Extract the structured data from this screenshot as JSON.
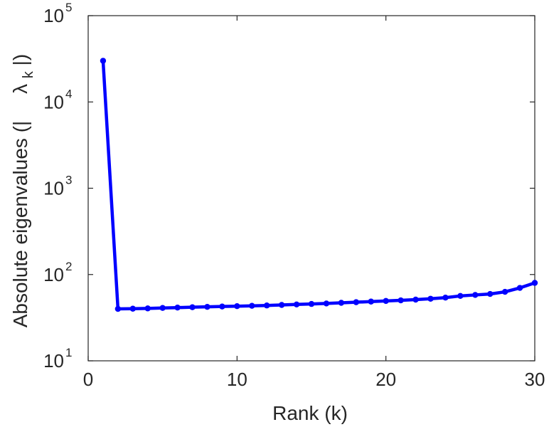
{
  "chart_data": {
    "type": "line",
    "xlabel": "Rank (k)",
    "ylabel_prefix": "Absolute eigenvalues (|",
    "ylabel_symbol": "λ",
    "ylabel_sub": "k",
    "ylabel_suffix": "|)",
    "x_scale": "linear",
    "y_scale": "log",
    "xlim": [
      0,
      30
    ],
    "ylim": [
      10,
      100000
    ],
    "x_ticks": [
      0,
      10,
      20,
      30
    ],
    "x_tick_labels": [
      "0",
      "10",
      "20",
      "30"
    ],
    "y_ticks": [
      10,
      100,
      1000,
      10000,
      100000
    ],
    "y_tick_base": "10",
    "y_tick_exponents": [
      "1",
      "2",
      "3",
      "4",
      "5"
    ],
    "grid": false,
    "color": "#0000ff",
    "x": [
      1,
      2,
      3,
      4,
      5,
      6,
      7,
      8,
      9,
      10,
      11,
      12,
      13,
      14,
      15,
      16,
      17,
      18,
      19,
      20,
      21,
      22,
      23,
      24,
      25,
      26,
      27,
      28,
      29,
      30
    ],
    "y": [
      30000,
      40,
      40.2,
      40.5,
      41,
      41.4,
      41.8,
      42.2,
      42.6,
      43,
      43.4,
      43.8,
      44.4,
      45,
      45.6,
      46.2,
      47,
      47.8,
      48.6,
      49.4,
      50.2,
      51.2,
      52.4,
      54,
      56.5,
      58,
      59.5,
      63,
      70,
      80
    ]
  }
}
